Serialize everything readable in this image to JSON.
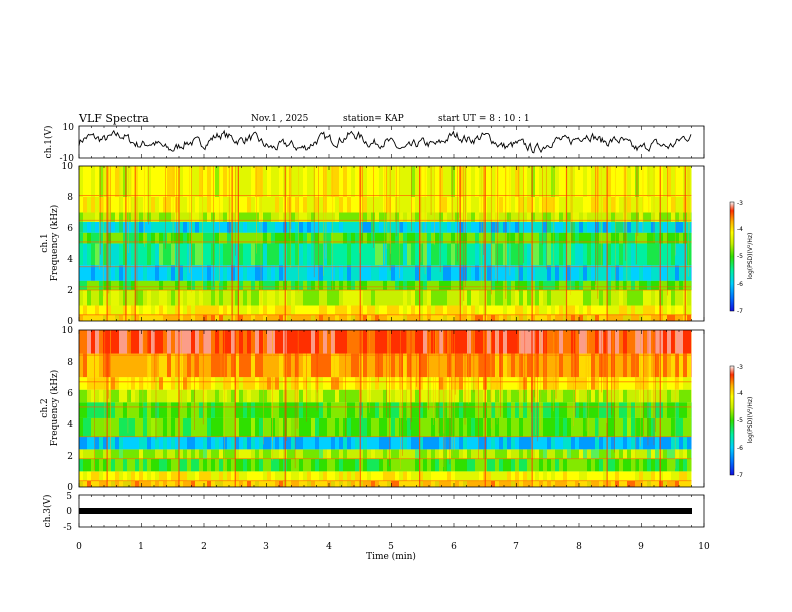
{
  "header": {
    "title": "VLF Spectra",
    "date": "Nov.1 , 2025",
    "station": "station= KAP",
    "start": "start  UT =  8 : 10 : 1"
  },
  "colors": {
    "scale": [
      "#1010e0",
      "#0070ff",
      "#00d0ff",
      "#00f0a0",
      "#30e000",
      "#c8f000",
      "#ffff00",
      "#ffb000",
      "#ff3000",
      "#f8f8f8"
    ]
  },
  "chart_data": [
    {
      "type": "line",
      "id": "ch1-waveform",
      "ylabel": "ch.1(V)",
      "ylim": [
        -10,
        10
      ],
      "yticks": [
        "10",
        "-10"
      ],
      "xlim": [
        0,
        10
      ],
      "note": "broadband voltage trace, oscillating roughly between -5 and 5 V"
    },
    {
      "type": "heatmap",
      "id": "ch1-spectrogram",
      "ylabel_line1": "ch.1",
      "ylabel_line2": "Frequency (kHz)",
      "ylim": [
        0,
        10
      ],
      "yticks": [
        "0",
        "2",
        "4",
        "6",
        "8",
        "10"
      ],
      "xlim": [
        0,
        10
      ],
      "colorbar": {
        "label": "log(PSD)(V²/Hz)",
        "ticks": [
          "-3",
          "-4",
          "-5",
          "-6",
          "-7"
        ],
        "range": [
          -7,
          -3
        ]
      },
      "bands": [
        {
          "from": 0.0,
          "to": 0.4,
          "level": 6.5
        },
        {
          "from": 0.4,
          "to": 1.0,
          "level": 6.2
        },
        {
          "from": 1.0,
          "to": 2.0,
          "level": 5.0
        },
        {
          "from": 2.0,
          "to": 2.6,
          "level": 4.2
        },
        {
          "from": 2.6,
          "to": 3.6,
          "level": 2.2
        },
        {
          "from": 3.6,
          "to": 5.0,
          "level": 3.4
        },
        {
          "from": 5.0,
          "to": 5.7,
          "level": 4.2
        },
        {
          "from": 5.7,
          "to": 6.4,
          "level": 2.3
        },
        {
          "from": 6.4,
          "to": 7.0,
          "level": 4.8
        },
        {
          "from": 7.0,
          "to": 8.0,
          "level": 5.8
        },
        {
          "from": 8.0,
          "to": 10.0,
          "level": 5.6
        }
      ],
      "lines_khz": [
        0.4,
        2.0,
        2.2,
        3.5,
        5.1,
        6.5,
        8.1
      ],
      "spikes_min": [
        0.45,
        0.75,
        0.9,
        1.6,
        2.45,
        2.55,
        3.3,
        4.5,
        5.45,
        6.1,
        6.5,
        7.25,
        7.8,
        8.45,
        9.3,
        9.7
      ]
    },
    {
      "type": "heatmap",
      "id": "ch2-spectrogram",
      "ylabel_line1": "ch.2",
      "ylabel_line2": "Frequency (kHz)",
      "ylim": [
        0,
        10
      ],
      "yticks": [
        "0",
        "2",
        "4",
        "6",
        "8",
        "10"
      ],
      "xlim": [
        0,
        10
      ],
      "colorbar": {
        "label": "log(PSD)(V²/Hz)",
        "ticks": [
          "-3",
          "-4",
          "-5",
          "-6",
          "-7"
        ],
        "range": [
          -7,
          -3
        ]
      },
      "bands": [
        {
          "from": 0.0,
          "to": 0.4,
          "level": 6.5
        },
        {
          "from": 0.4,
          "to": 1.0,
          "level": 5.8
        },
        {
          "from": 1.0,
          "to": 1.8,
          "level": 4.2
        },
        {
          "from": 1.8,
          "to": 2.4,
          "level": 4.6
        },
        {
          "from": 2.4,
          "to": 3.2,
          "level": 1.8
        },
        {
          "from": 3.2,
          "to": 4.4,
          "level": 4.3
        },
        {
          "from": 4.4,
          "to": 5.4,
          "level": 4.0
        },
        {
          "from": 5.4,
          "to": 6.2,
          "level": 5.0
        },
        {
          "from": 6.2,
          "to": 7.0,
          "level": 6.4
        },
        {
          "from": 7.0,
          "to": 8.5,
          "level": 7.2
        },
        {
          "from": 8.5,
          "to": 10.0,
          "level": 8.2
        }
      ],
      "lines_khz": [
        0.4,
        1.8,
        3.2,
        5.1,
        6.7,
        8.4
      ],
      "spikes_min": [
        0.45,
        1.6,
        2.5,
        3.3,
        4.5,
        5.45,
        6.5,
        7.25,
        8.45,
        9.3
      ]
    },
    {
      "type": "line",
      "id": "ch3-waveform",
      "ylabel": "ch.3(V)",
      "ylim": [
        -5,
        5
      ],
      "yticks": [
        "5",
        "0",
        "-5"
      ],
      "xlim": [
        0,
        10
      ],
      "xticks": [
        "0",
        "1",
        "2",
        "3",
        "4",
        "5",
        "6",
        "7",
        "8",
        "9",
        "10"
      ],
      "xlabel": "Time (min)",
      "note": "thick near-constant trace around 0 V"
    }
  ]
}
